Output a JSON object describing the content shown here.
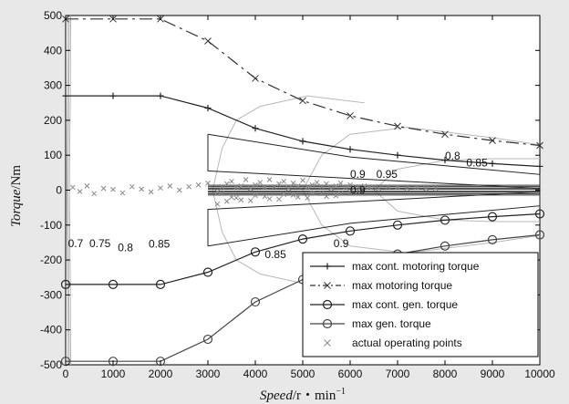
{
  "chart_data": {
    "type": "line",
    "title": "",
    "xlabel_italic": "Speed",
    "xlabel_unit": "/r・min",
    "xlabel_exp": "−1",
    "ylabel_italic": "Torque",
    "ylabel_unit": "/Nm",
    "xlim": [
      0,
      10000
    ],
    "ylim": [
      -500,
      500
    ],
    "xticks": [
      0,
      1000,
      2000,
      3000,
      4000,
      5000,
      6000,
      7000,
      8000,
      9000,
      10000
    ],
    "yticks": [
      -500,
      -400,
      -300,
      -200,
      -100,
      0,
      100,
      200,
      300,
      400,
      500
    ],
    "grid": false,
    "legend_position": "bottom-right",
    "series": [
      {
        "name": "max cont. motoring torque",
        "marker": "plus",
        "dash": "solid",
        "color": "#222222",
        "x": [
          0,
          1000,
          2000,
          3000,
          4000,
          5000,
          6000,
          7000,
          8000,
          9000,
          10000
        ],
        "y": [
          270,
          270,
          270,
          235,
          177,
          140,
          117,
          100,
          86,
          76,
          68
        ]
      },
      {
        "name": "max motoring torque",
        "marker": "x",
        "dash": "dashdot",
        "color": "#333333",
        "x": [
          0,
          1000,
          2000,
          3000,
          4000,
          5000,
          6000,
          7000,
          8000,
          9000,
          10000
        ],
        "y": [
          490,
          490,
          490,
          427,
          320,
          256,
          213,
          183,
          160,
          142,
          128
        ]
      },
      {
        "name": "max cont. gen. torque",
        "marker": "circle",
        "dash": "solid",
        "color": "#222222",
        "x": [
          0,
          1000,
          2000,
          3000,
          4000,
          5000,
          6000,
          7000,
          8000,
          9000,
          10000
        ],
        "y": [
          -270,
          -270,
          -270,
          -235,
          -177,
          -140,
          -117,
          -100,
          -86,
          -76,
          -68
        ]
      },
      {
        "name": "max gen. torque",
        "marker": "circle",
        "dash": "solid",
        "color": "#444444",
        "x": [
          0,
          1000,
          2000,
          3000,
          4000,
          5000,
          6000,
          7000,
          8000,
          9000,
          10000
        ],
        "y": [
          -490,
          -490,
          -490,
          -427,
          -320,
          -256,
          -213,
          -183,
          -160,
          -142,
          -128
        ]
      },
      {
        "name": "actual operating points",
        "marker": "x",
        "dash": "none",
        "color": "#888888",
        "x": [
          150,
          300,
          450,
          600,
          800,
          1000,
          1200,
          1400,
          1600,
          1800,
          2000,
          2200,
          2400,
          2600,
          2800,
          3000,
          3200,
          3300,
          3400,
          3500,
          3600,
          3700,
          3800,
          3900,
          4000,
          4100,
          4200,
          4300,
          4400,
          4500,
          4600,
          4700,
          4800,
          4900,
          5000,
          5100,
          5200,
          5300,
          5400,
          5500,
          5600,
          5700,
          5800,
          5900,
          6000,
          6100,
          6200,
          6300,
          6400,
          6500,
          6600,
          6800,
          7000,
          7200,
          7400,
          7600,
          7800,
          3300,
          3500,
          3700,
          4000,
          4300,
          4600,
          4900,
          5200,
          5500,
          5800,
          3200,
          3400,
          3600,
          3900,
          4200,
          4500,
          4800,
          5100,
          5400,
          5700,
          6000
        ],
        "y": [
          8,
          -4,
          12,
          -10,
          5,
          2,
          -8,
          10,
          3,
          -5,
          6,
          12,
          0,
          10,
          15,
          20,
          -5,
          10,
          18,
          25,
          8,
          12,
          30,
          5,
          15,
          22,
          8,
          30,
          10,
          18,
          25,
          5,
          20,
          12,
          28,
          8,
          15,
          22,
          10,
          18,
          5,
          12,
          20,
          8,
          15,
          10,
          5,
          12,
          8,
          10,
          6,
          10,
          8,
          6,
          8,
          5,
          6,
          -10,
          -20,
          -28,
          -15,
          -25,
          -12,
          -20,
          -8,
          -18,
          -10,
          -40,
          -32,
          -22,
          -30,
          -18,
          -26,
          -14,
          -22,
          -10,
          -16,
          -6
        ]
      }
    ],
    "efficiency_labels": [
      {
        "text": "0.8",
        "x": 8000,
        "y": 88
      },
      {
        "text": "0.85",
        "x": 8450,
        "y": 68
      },
      {
        "text": "0.9",
        "x": 6000,
        "y": 35
      },
      {
        "text": "0.95",
        "x": 6550,
        "y": 35
      },
      {
        "text": "0.9",
        "x": 6000,
        "y": -10
      },
      {
        "text": "0.7",
        "x": 50,
        "y": -163
      },
      {
        "text": "0.75",
        "x": 500,
        "y": -163
      },
      {
        "text": "0.8",
        "x": 1100,
        "y": -175
      },
      {
        "text": "0.85",
        "x": 1750,
        "y": -165
      },
      {
        "text": "0.85",
        "x": 4200,
        "y": -195
      },
      {
        "text": "0.9",
        "x": 5650,
        "y": -163
      }
    ]
  }
}
